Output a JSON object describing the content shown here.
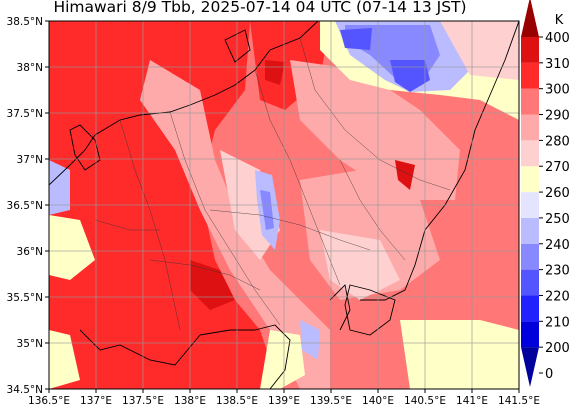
{
  "title": "Himawari 8/9 Tbb, 2025-07-14 04 UTC (07-14 13 JST)",
  "map": {
    "lon_range": [
      136.5,
      141.5
    ],
    "lat_range": [
      34.5,
      38.5
    ],
    "grid": true,
    "lon_ticks": [
      "136.5°E",
      "137°E",
      "137.5°E",
      "138°E",
      "138.5°E",
      "139°E",
      "139.5°E",
      "140°E",
      "140.5°E",
      "141°E",
      "141.5°E"
    ],
    "lat_ticks": [
      "34.5°N",
      "35°N",
      "35.5°N",
      "36°N",
      "36.5°N",
      "37°N",
      "37.5°N",
      "38°N",
      "38.5°N"
    ]
  },
  "colorbar": {
    "unit": "K",
    "levels": [
      "0",
      "200",
      "210",
      "220",
      "230",
      "240",
      "250",
      "260",
      "270",
      "280",
      "290",
      "300",
      "310",
      "400"
    ],
    "colors": [
      "#00009c",
      "#0000dd",
      "#2222ff",
      "#5555ff",
      "#8888ff",
      "#bbbbff",
      "#e4e4ff",
      "#ffffc8",
      "#ffd0d0",
      "#ffaaaa",
      "#ff7777",
      "#ff2a2a",
      "#dd1111",
      "#990000"
    ]
  }
}
